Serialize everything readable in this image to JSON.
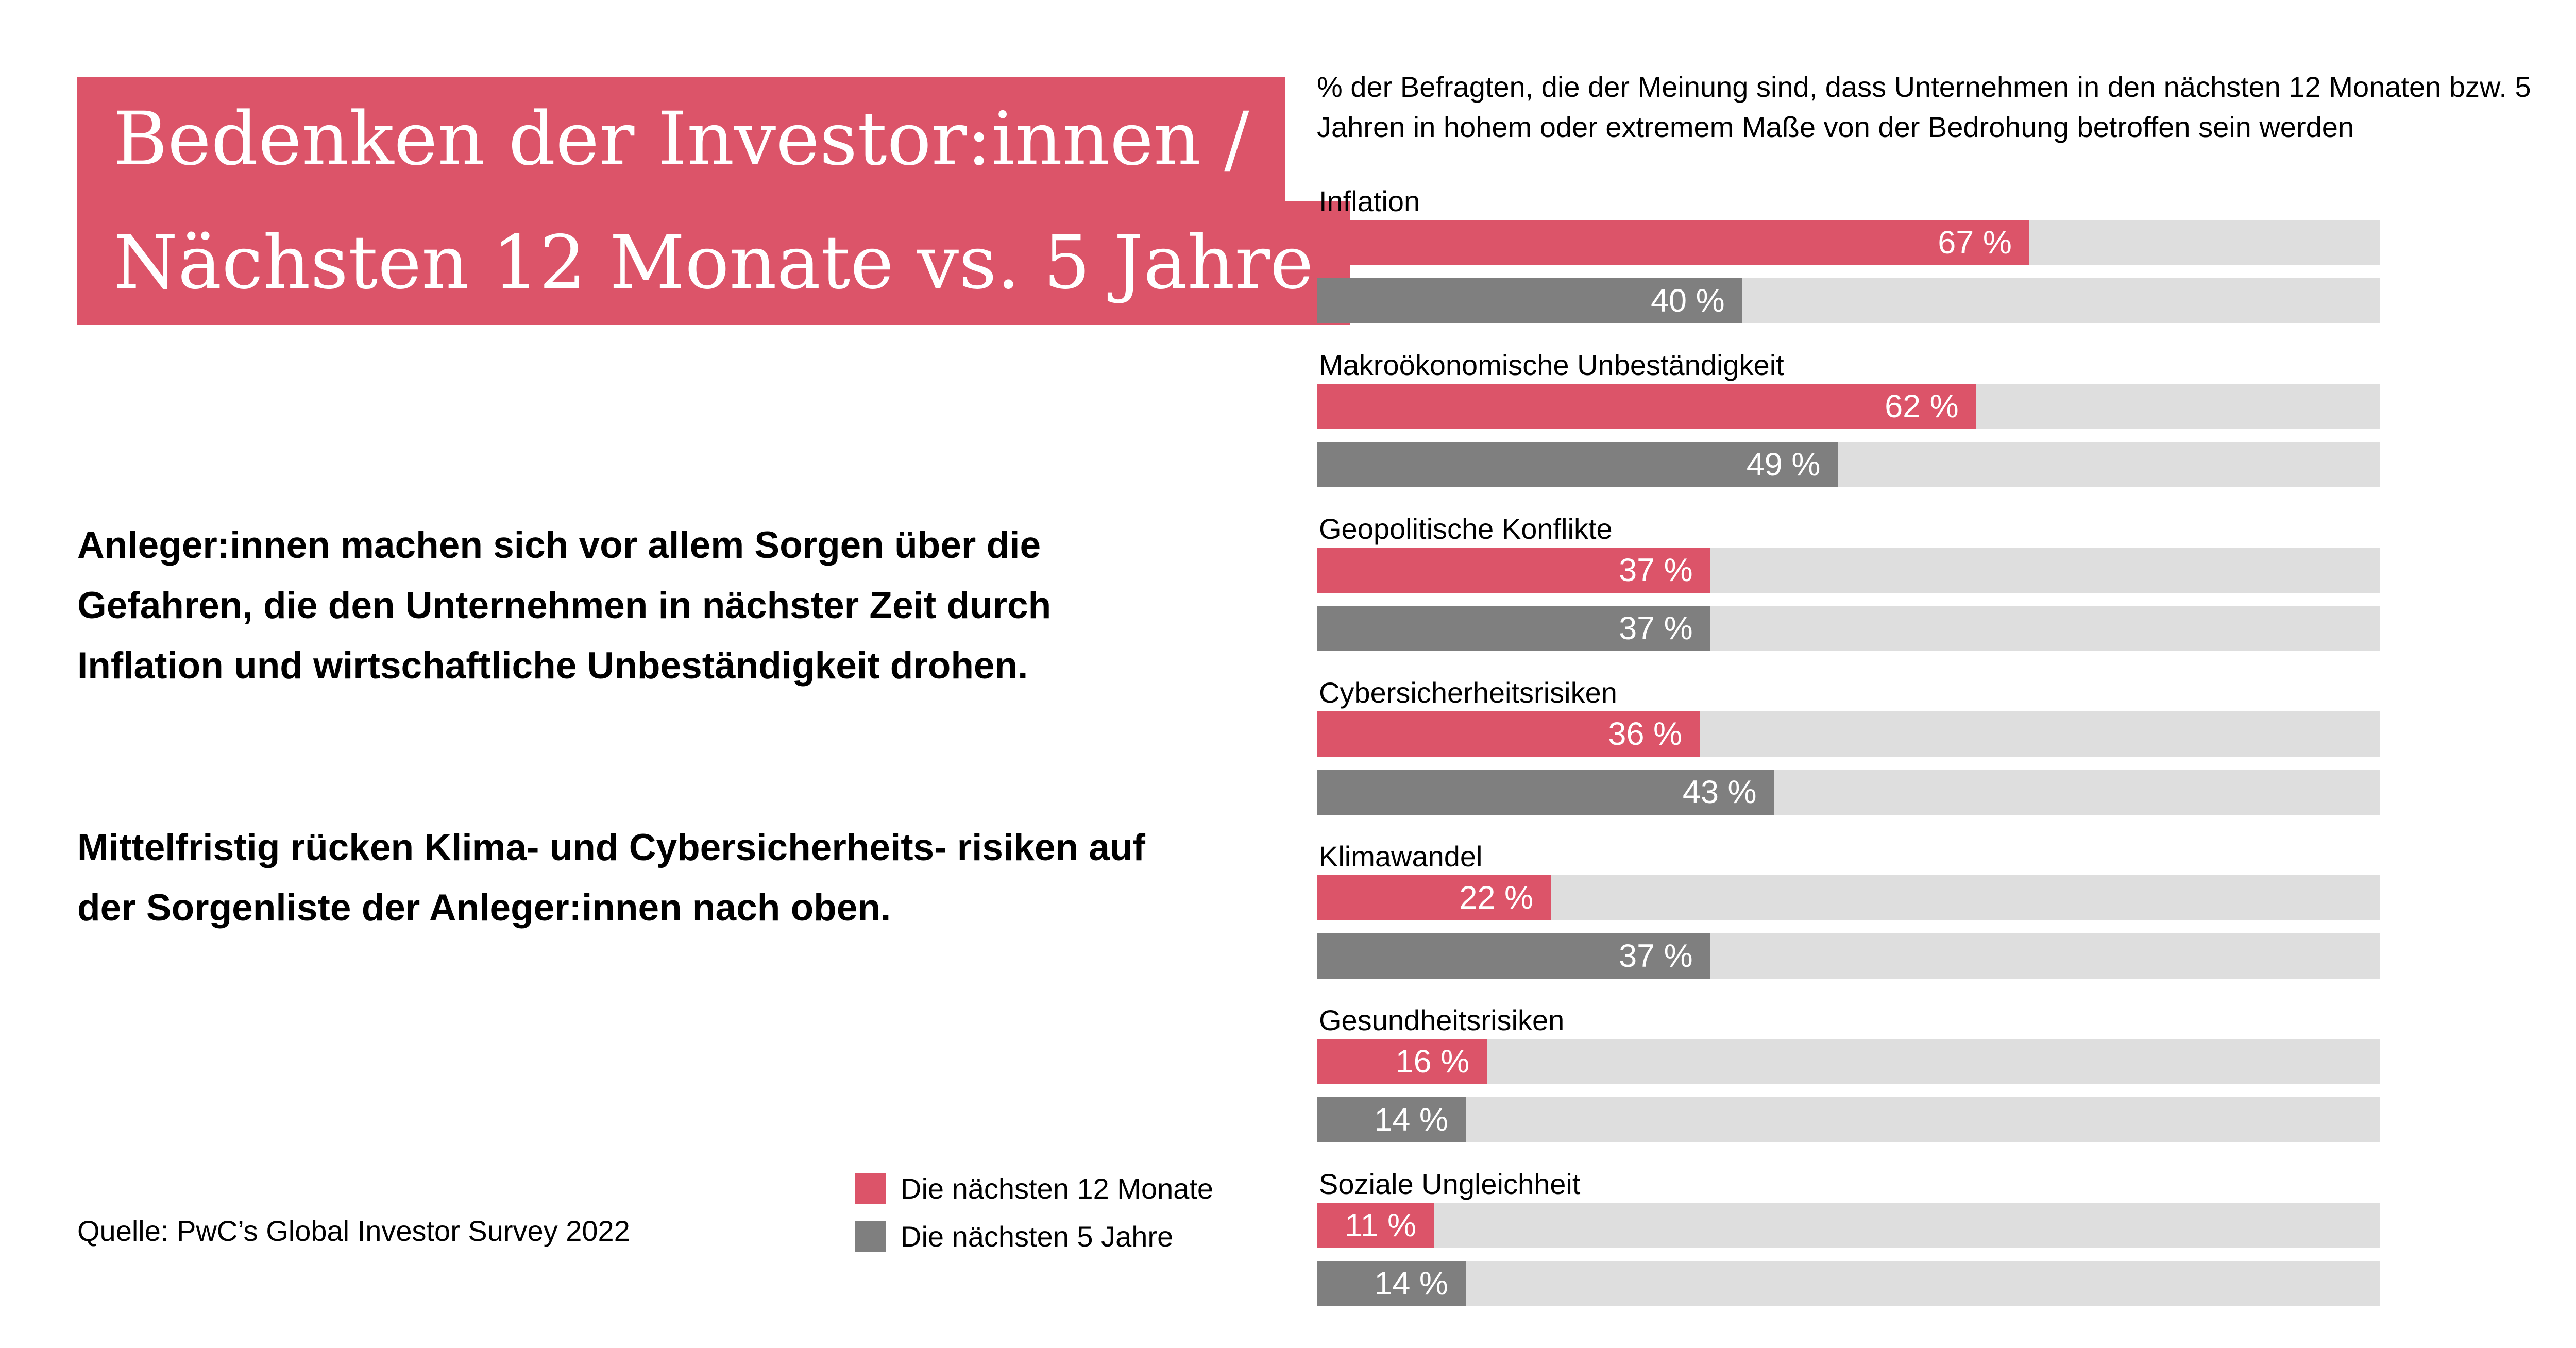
{
  "title": {
    "line1": "Bedenken der Investor:innen /",
    "line2": "Nächsten 12 Monate vs. 5 Jahre"
  },
  "body": {
    "paragraph1": "Anleger:innen machen sich vor allem Sorgen über die Gefahren, die den Unternehmen in nächster Zeit durch Inflation und wirtschaftliche Unbeständigkeit drohen.",
    "paragraph2": "Mittelfristig rücken Klima- und Cybersicherheits- risiken auf der Sorgenliste der Anleger:innen nach oben."
  },
  "source": "Quelle: PwC’s Global Investor Survey 2022",
  "colors": {
    "short_term": "#dc5469",
    "long_term": "#7f7f7f",
    "track": "#dedede"
  },
  "chart_data": {
    "type": "bar",
    "orientation": "horizontal",
    "subtitle": "% der Befragten, die der Meinung sind, dass Unternehmen in den nächsten 12 Monaten bzw. 5 Jahren in hohem oder extremem Maße von der Bedrohung betroffen sein werden",
    "categories": [
      "Inflation",
      "Makroökonomische Unbeständigkeit",
      "Geopolitische Konflikte",
      "Cybersicherheitsrisiken",
      "Klimawandel",
      "Gesundheitsrisiken",
      "Soziale Ungleichheit"
    ],
    "series": [
      {
        "name": "Die nächsten 12 Monate",
        "values": [
          67,
          62,
          37,
          36,
          22,
          16,
          11
        ],
        "labels": [
          "67 %",
          "62 %",
          "37 %",
          "36 %",
          "22 %",
          "16 %",
          "11 %"
        ]
      },
      {
        "name": "Die nächsten 5 Jahre",
        "values": [
          40,
          49,
          37,
          43,
          37,
          14,
          14
        ],
        "labels": [
          "40 %",
          "49 %",
          "37 %",
          "43 %",
          "37 %",
          "14 %",
          "14 %"
        ]
      }
    ],
    "xlim": [
      0,
      100
    ],
    "unit": "%",
    "grid": false,
    "legend_position": "bottom-left"
  }
}
